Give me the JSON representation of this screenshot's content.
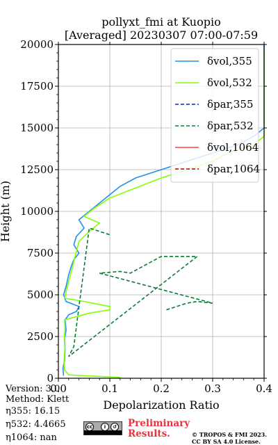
{
  "chart_data": {
    "type": "line",
    "title": "pollyxt_fmi at Kuopio",
    "subtitle": "[Averaged] 20230307 07:00-07:59",
    "xlabel": "Depolarization Ratio",
    "ylabel": "Height (m)",
    "xlim": [
      0.0,
      0.4
    ],
    "ylim": [
      0,
      20000
    ],
    "xticks": [
      "0.0",
      "0.1",
      "0.2",
      "0.3",
      "0.4"
    ],
    "yticks": [
      "0",
      "2500",
      "5000",
      "7500",
      "10000",
      "12500",
      "15000",
      "17500",
      "20000"
    ],
    "grid": true,
    "legend_position": "top-right",
    "series": [
      {
        "key": "vol355",
        "name": "δvol,355",
        "color": "#1f8ff0",
        "dash": "solid",
        "points": [
          [
            0.01,
            150
          ],
          [
            0.009,
            600
          ],
          [
            0.012,
            1100
          ],
          [
            0.013,
            1700
          ],
          [
            0.012,
            2300
          ],
          [
            0.015,
            2900
          ],
          [
            0.013,
            3500
          ],
          [
            0.02,
            3800
          ],
          [
            0.035,
            4000
          ],
          [
            0.04,
            4300
          ],
          [
            0.015,
            4600
          ],
          [
            0.01,
            5000
          ],
          [
            0.015,
            5500
          ],
          [
            0.02,
            6200
          ],
          [
            0.025,
            6700
          ],
          [
            0.03,
            7100
          ],
          [
            0.04,
            7500
          ],
          [
            0.03,
            8000
          ],
          [
            0.035,
            8500
          ],
          [
            0.05,
            9000
          ],
          [
            0.04,
            9500
          ],
          [
            0.06,
            10000
          ],
          [
            0.08,
            10500
          ],
          [
            0.1,
            11000
          ],
          [
            0.12,
            11500
          ],
          [
            0.15,
            12000
          ],
          [
            0.2,
            12500
          ],
          [
            0.25,
            13000
          ],
          [
            0.3,
            13500
          ],
          [
            0.35,
            14000
          ],
          [
            0.38,
            14500
          ],
          [
            0.4,
            15000
          ],
          [
            0.4,
            16000
          ],
          [
            0.4,
            17000
          ],
          [
            0.4,
            18000
          ],
          [
            0.4,
            19000
          ],
          [
            0.4,
            20000
          ]
        ]
      },
      {
        "key": "vol532",
        "name": "δvol,532",
        "color": "#80ff00",
        "dash": "solid",
        "points": [
          [
            0.12,
            50
          ],
          [
            0.02,
            200
          ],
          [
            0.012,
            500
          ],
          [
            0.011,
            1000
          ],
          [
            0.012,
            1500
          ],
          [
            0.013,
            2000
          ],
          [
            0.012,
            2500
          ],
          [
            0.013,
            3000
          ],
          [
            0.012,
            3500
          ],
          [
            0.06,
            3900
          ],
          [
            0.1,
            4100
          ],
          [
            0.1,
            4300
          ],
          [
            0.05,
            4600
          ],
          [
            0.012,
            4800
          ],
          [
            0.015,
            5200
          ],
          [
            0.02,
            5800
          ],
          [
            0.025,
            6400
          ],
          [
            0.03,
            7000
          ],
          [
            0.035,
            7600
          ],
          [
            0.04,
            8200
          ],
          [
            0.06,
            8800
          ],
          [
            0.08,
            9300
          ],
          [
            0.05,
            9700
          ],
          [
            0.07,
            10200
          ],
          [
            0.1,
            10800
          ],
          [
            0.15,
            11400
          ],
          [
            0.2,
            12000
          ],
          [
            0.25,
            12500
          ],
          [
            0.3,
            13000
          ],
          [
            0.33,
            13500
          ],
          [
            0.38,
            14000
          ],
          [
            0.4,
            14500
          ],
          [
            0.4,
            15500
          ],
          [
            0.4,
            16500
          ],
          [
            0.4,
            17500
          ],
          [
            0.4,
            18500
          ],
          [
            0.4,
            19500
          ]
        ]
      },
      {
        "key": "par355",
        "name": "δpar,355",
        "color": "#0a2fb0",
        "dash": "dashed",
        "points": []
      },
      {
        "key": "par532",
        "name": "δpar,532",
        "color": "#0a7a35",
        "dash": "dashed",
        "points": [
          [
            0.21,
            4100
          ],
          [
            0.23,
            4300
          ],
          [
            0.25,
            4500
          ],
          [
            0.27,
            4600
          ],
          [
            0.3,
            4500
          ],
          [
            0.08,
            6300
          ],
          [
            0.1,
            6350
          ],
          [
            0.12,
            6400
          ],
          [
            0.14,
            6300
          ],
          [
            0.2,
            7300
          ],
          [
            0.27,
            7300
          ],
          [
            0.02,
            1300
          ],
          [
            0.03,
            1900
          ],
          [
            0.06,
            9000
          ],
          [
            0.1,
            8600
          ]
        ]
      },
      {
        "key": "vol1064",
        "name": "δvol,1064",
        "color": "#ff4040",
        "dash": "solid",
        "points": []
      },
      {
        "key": "par1064",
        "name": "δpar,1064",
        "color": "#b00000",
        "dash": "dashed",
        "points": []
      }
    ]
  },
  "footer": {
    "version": "Version: 3.0",
    "method": "Method: Klett",
    "eta355": "η355:  16.15",
    "eta532": "η532: 4.4665",
    "eta1064": "η1064:    nan",
    "preliminary_line1": "Preliminary",
    "preliminary_line2": "Results.",
    "copyright_line1": "© TROPOS & FMI 2023.",
    "copyright_line2": "CC BY SA 4.0 License.",
    "cc_logo": "cc-by-sa-icon"
  }
}
